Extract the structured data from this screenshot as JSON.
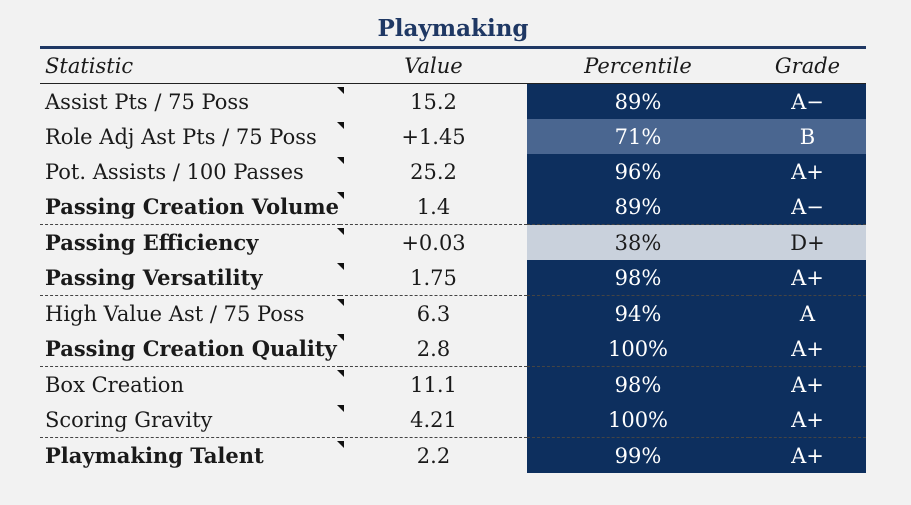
{
  "title": "Playmaking",
  "headers": {
    "statistic": "Statistic",
    "value": "Value",
    "percentile": "Percentile",
    "grade": "Grade"
  },
  "rows": [
    {
      "statistic": "Assist Pts / 75 Poss",
      "value": "15.2",
      "percentile": "89%",
      "grade": "A−",
      "bold": false,
      "shade": "dark",
      "dashed": false
    },
    {
      "statistic": "Role Adj Ast Pts / 75 Poss",
      "value": "+1.45",
      "percentile": "71%",
      "grade": "B",
      "bold": false,
      "shade": "mid",
      "dashed": false
    },
    {
      "statistic": "Pot. Assists / 100 Passes",
      "value": "25.2",
      "percentile": "96%",
      "grade": "A+",
      "bold": false,
      "shade": "dark",
      "dashed": false
    },
    {
      "statistic": "Passing Creation Volume",
      "value": "1.4",
      "percentile": "89%",
      "grade": "A−",
      "bold": true,
      "shade": "dark",
      "dashed": true
    },
    {
      "statistic": "Passing Efficiency",
      "value": "+0.03",
      "percentile": "38%",
      "grade": "D+",
      "bold": true,
      "shade": "light",
      "dashed": false
    },
    {
      "statistic": "Passing Versatility",
      "value": "1.75",
      "percentile": "98%",
      "grade": "A+",
      "bold": true,
      "shade": "dark",
      "dashed": true
    },
    {
      "statistic": "High Value Ast / 75 Poss",
      "value": "6.3",
      "percentile": "94%",
      "grade": "A",
      "bold": false,
      "shade": "dark",
      "dashed": false
    },
    {
      "statistic": "Passing Creation Quality",
      "value": "2.8",
      "percentile": "100%",
      "grade": "A+",
      "bold": true,
      "shade": "dark",
      "dashed": true
    },
    {
      "statistic": "Box Creation",
      "value": "11.1",
      "percentile": "98%",
      "grade": "A+",
      "bold": false,
      "shade": "dark",
      "dashed": false
    },
    {
      "statistic": "Scoring Gravity",
      "value": "4.21",
      "percentile": "100%",
      "grade": "A+",
      "bold": false,
      "shade": "dark",
      "dashed": true
    },
    {
      "statistic": "Playmaking Talent",
      "value": "2.2",
      "percentile": "99%",
      "grade": "A+",
      "bold": true,
      "shade": "dark",
      "dashed": false
    }
  ]
}
